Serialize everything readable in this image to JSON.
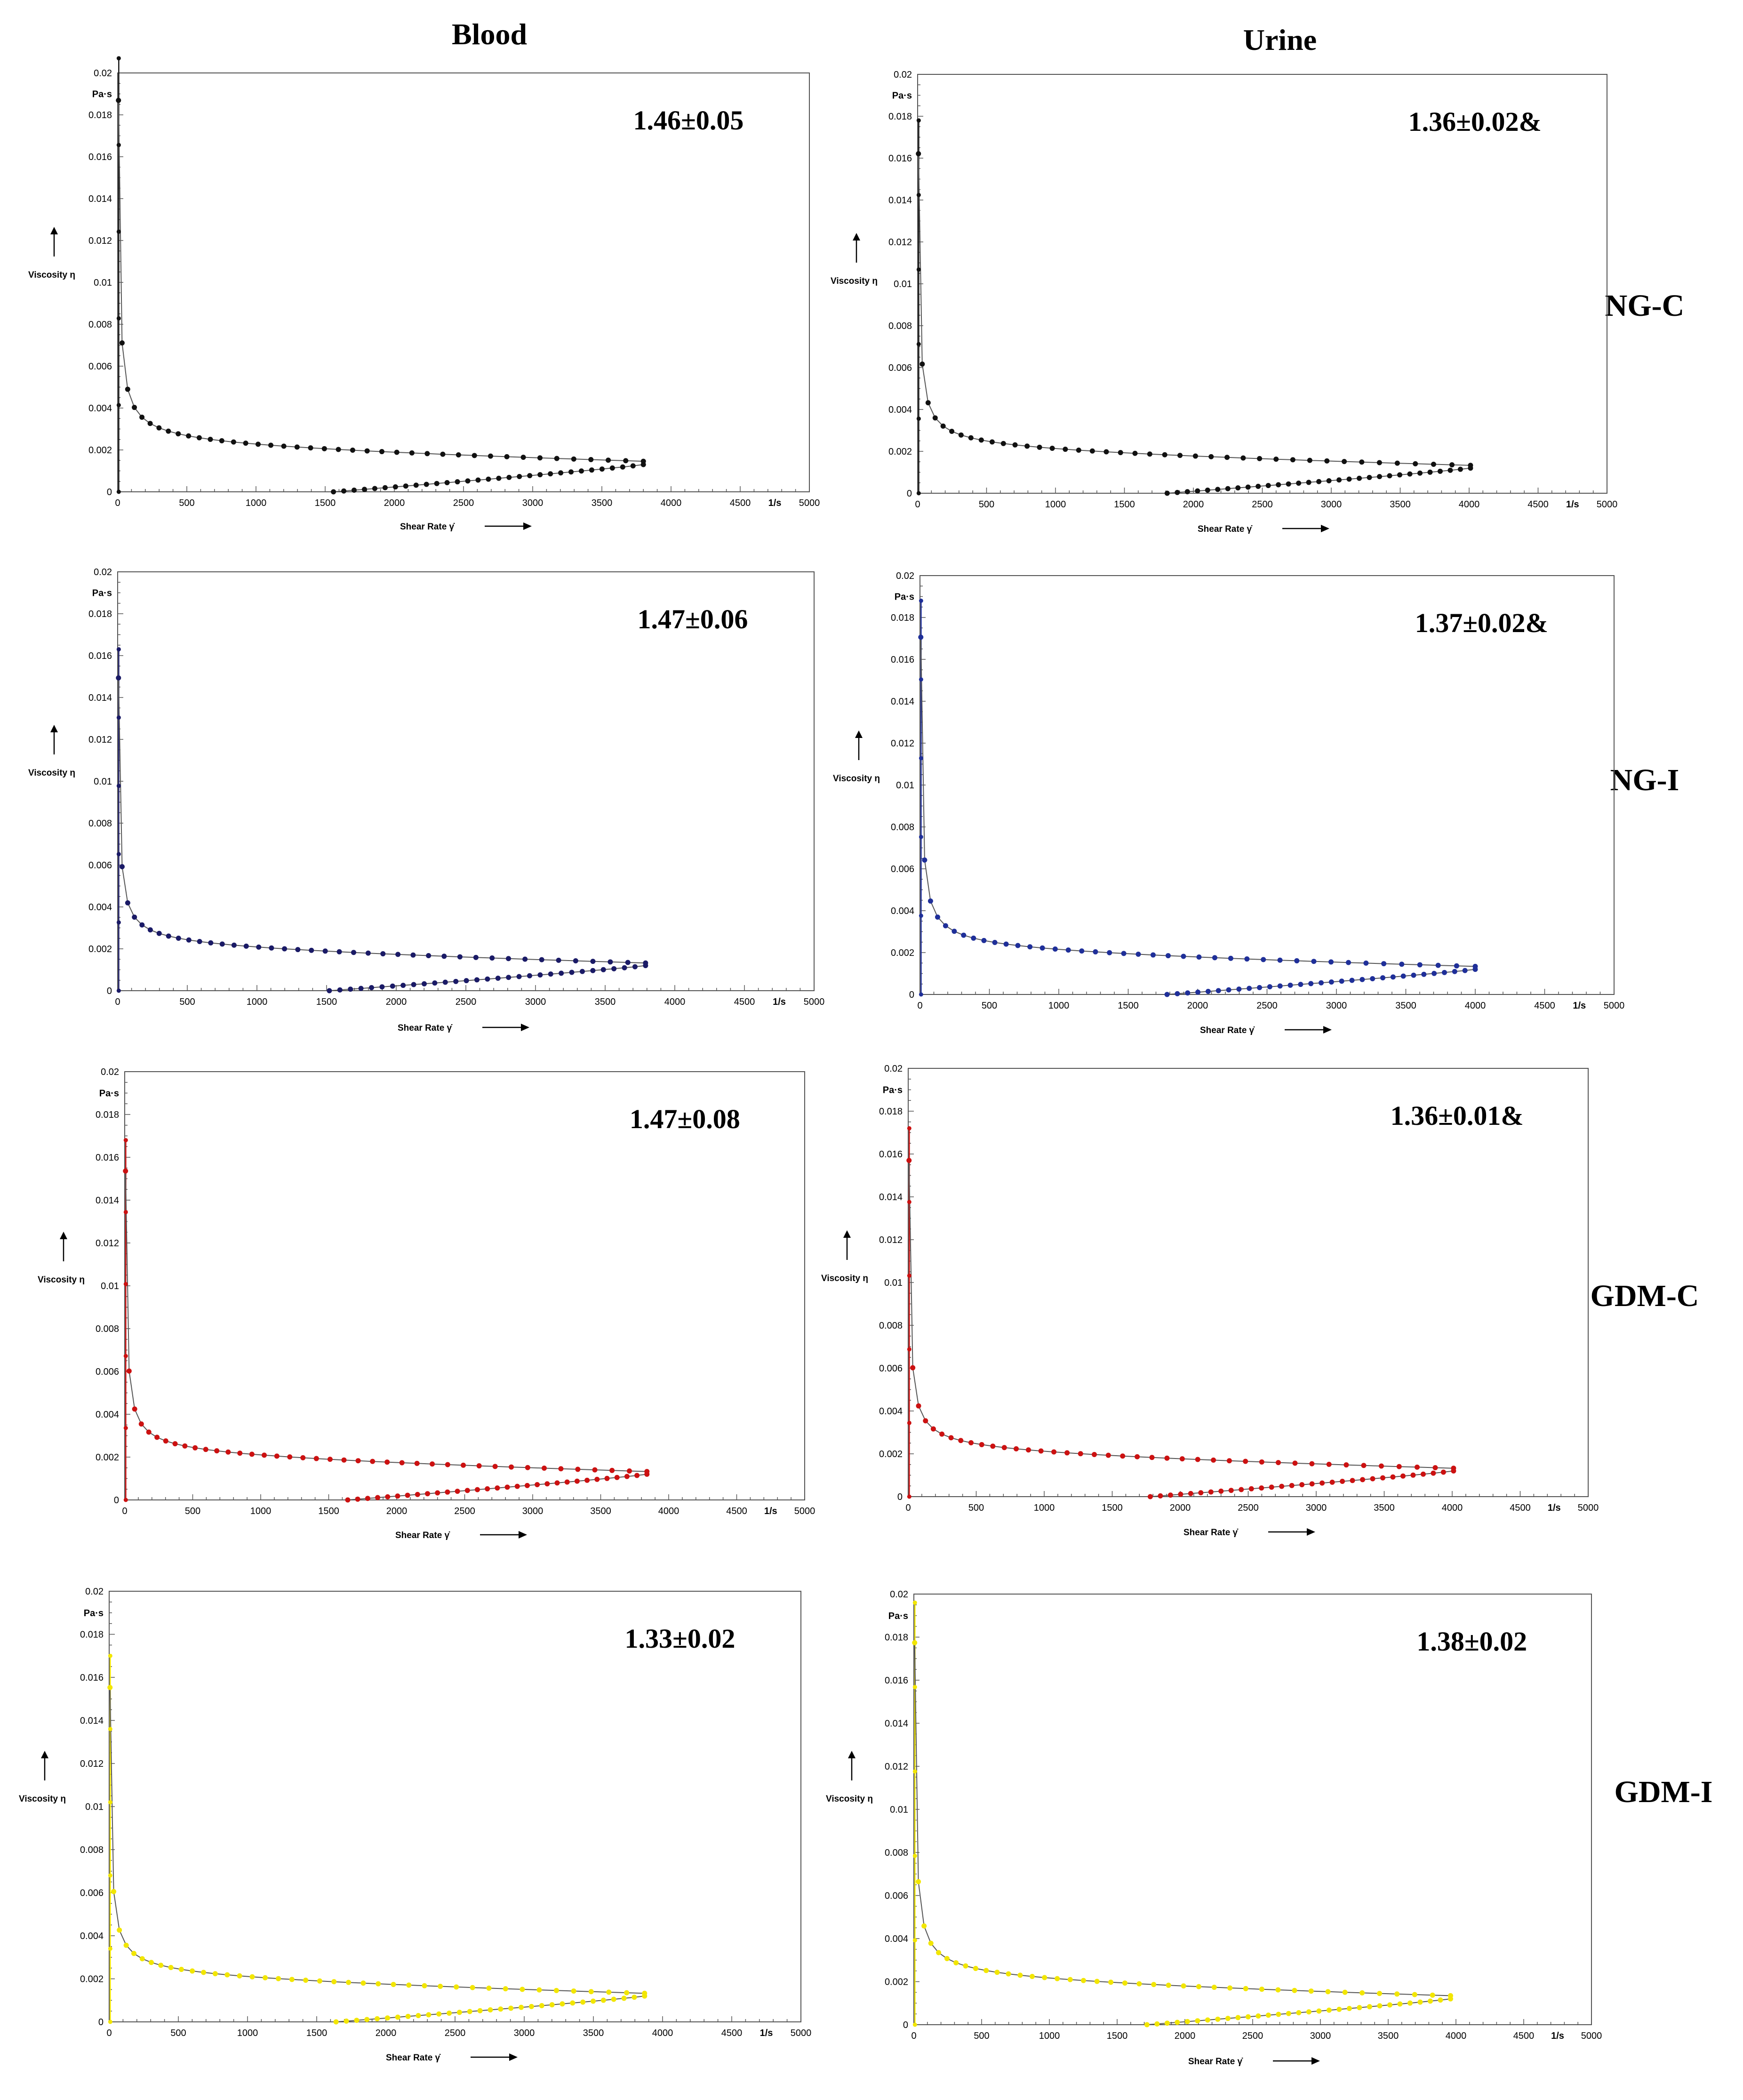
{
  "columns": {
    "blood": "Blood",
    "urine": "Urine"
  },
  "rows": [
    "NG-C",
    "NG-I",
    "GDM-C",
    "GDM-I"
  ],
  "chart_data": [
    {
      "type": "line",
      "title": "",
      "column": "Blood",
      "row": "NG-C",
      "stat": "1.46±0.05",
      "color": "#111111",
      "max_shear": 3800,
      "min_shear_end": 1560,
      "peak": 0.0207,
      "plateau": 0.0013,
      "xlabel": "Shear Rate γ̇",
      "ylabel": "Viscosity η",
      "yunit": "Pa·s",
      "xunit": "1/s",
      "xlim": [
        0,
        5000
      ],
      "ylim": [
        0,
        0.02
      ],
      "xticks": [
        "0",
        "500",
        "1000",
        "1500",
        "2000",
        "2500",
        "3000",
        "3500",
        "4000",
        "4500",
        "1/s",
        "5000"
      ],
      "yticks": [
        "0",
        "0.002",
        "0.004",
        "0.006",
        "0.008",
        "0.01",
        "0.012",
        "0.014",
        "0.016",
        "0.018",
        "Pa·s",
        "0.02"
      ]
    },
    {
      "type": "line",
      "title": "",
      "column": "Urine",
      "row": "NG-C",
      "stat": "1.36±0.02&",
      "color": "#111111",
      "max_shear": 4010,
      "min_shear_end": 1810,
      "peak": 0.0178,
      "plateau": 0.0012,
      "xlabel": "Shear Rate γ̇",
      "ylabel": "Viscosity η",
      "yunit": "Pa·s",
      "xunit": "1/s",
      "xlim": [
        0,
        5000
      ],
      "ylim": [
        0,
        0.02
      ],
      "xticks": [
        "0",
        "500",
        "1000",
        "1500",
        "2000",
        "2500",
        "3000",
        "3500",
        "4000",
        "4500",
        "1/s",
        "5000"
      ],
      "yticks": [
        "0",
        "0.002",
        "0.004",
        "0.006",
        "0.008",
        "0.01",
        "0.012",
        "0.014",
        "0.016",
        "0.018",
        "Pa·s",
        "0.02"
      ]
    },
    {
      "type": "line",
      "title": "",
      "column": "Blood",
      "row": "NG-I",
      "stat": "1.47±0.06",
      "color": "#1a1a66",
      "max_shear": 3790,
      "min_shear_end": 1520,
      "peak": 0.0163,
      "plateau": 0.0012,
      "xlabel": "Shear Rate γ̇",
      "ylabel": "Viscosity η",
      "yunit": "Pa·s",
      "xunit": "1/s",
      "xlim": [
        0,
        5000
      ],
      "ylim": [
        0,
        0.02
      ],
      "xticks": [
        "0",
        "500",
        "1000",
        "1500",
        "2000",
        "2500",
        "3000",
        "3500",
        "4000",
        "4500",
        "1/s",
        "5000"
      ],
      "yticks": [
        "0",
        "0.002",
        "0.004",
        "0.006",
        "0.008",
        "0.01",
        "0.012",
        "0.014",
        "0.016",
        "0.018",
        "Pa·s",
        "0.02"
      ]
    },
    {
      "type": "line",
      "title": "",
      "column": "Urine",
      "row": "NG-I",
      "stat": "1.37±0.02&",
      "color": "#1f2f99",
      "max_shear": 4000,
      "min_shear_end": 1780,
      "peak": 0.0188,
      "plateau": 0.0012,
      "xlabel": "Shear Rate γ̇",
      "ylabel": "Viscosity η",
      "yunit": "Pa·s",
      "xunit": "1/s",
      "xlim": [
        0,
        5000
      ],
      "ylim": [
        0,
        0.02
      ],
      "xticks": [
        "0",
        "500",
        "1000",
        "1500",
        "2000",
        "2500",
        "3000",
        "3500",
        "4000",
        "4500",
        "1/s",
        "5000"
      ],
      "yticks": [
        "0",
        "0.002",
        "0.004",
        "0.006",
        "0.008",
        "0.01",
        "0.012",
        "0.014",
        "0.016",
        "0.018",
        "Pa·s",
        "0.02"
      ]
    },
    {
      "type": "line",
      "title": "",
      "column": "Blood",
      "row": "GDM-C",
      "stat": "1.47±0.08",
      "color": "#cc1111",
      "max_shear": 3840,
      "min_shear_end": 1640,
      "peak": 0.0168,
      "plateau": 0.0012,
      "xlabel": "Shear Rate γ̇",
      "ylabel": "Viscosity η",
      "yunit": "Pa·s",
      "xunit": "1/s",
      "xlim": [
        0,
        5000
      ],
      "ylim": [
        0,
        0.02
      ],
      "xticks": [
        "0",
        "500",
        "1000",
        "1500",
        "2000",
        "2500",
        "3000",
        "3500",
        "4000",
        "4500",
        "1/s",
        "5000"
      ],
      "yticks": [
        "0",
        "0.002",
        "0.004",
        "0.006",
        "0.008",
        "0.01",
        "0.012",
        "0.014",
        "0.016",
        "0.018",
        "Pa·s",
        "0.02"
      ]
    },
    {
      "type": "line",
      "title": "",
      "column": "Urine",
      "row": "GDM-C",
      "stat": "1.36±0.01&",
      "color": "#cc1111",
      "max_shear": 4010,
      "min_shear_end": 1780,
      "peak": 0.0172,
      "plateau": 0.0012,
      "xlabel": "Shear Rate γ̇",
      "ylabel": "Viscosity η",
      "yunit": "Pa·s",
      "xunit": "1/s",
      "xlim": [
        0,
        5000
      ],
      "ylim": [
        0,
        0.02
      ],
      "xticks": [
        "0",
        "500",
        "1000",
        "1500",
        "2000",
        "2500",
        "3000",
        "3500",
        "4000",
        "4500",
        "1/s",
        "5000"
      ],
      "yticks": [
        "0",
        "0.002",
        "0.004",
        "0.006",
        "0.008",
        "0.01",
        "0.012",
        "0.014",
        "0.016",
        "0.018",
        "Pa·s",
        "0.02"
      ]
    },
    {
      "type": "line",
      "title": "",
      "column": "Blood",
      "row": "GDM-I",
      "stat": "1.33±0.02",
      "color": "#f2e600",
      "max_shear": 3870,
      "min_shear_end": 1640,
      "peak": 0.017,
      "plateau": 0.0012,
      "xlabel": "Shear Rate γ̇",
      "ylabel": "Viscosity η",
      "yunit": "Pa·s",
      "xunit": "1/s",
      "xlim": [
        0,
        5000
      ],
      "ylim": [
        0,
        0.02
      ],
      "xticks": [
        "0",
        "500",
        "1000",
        "1500",
        "2000",
        "2500",
        "3000",
        "3500",
        "4000",
        "4500",
        "1/s",
        "5000"
      ],
      "yticks": [
        "0",
        "0.002",
        "0.004",
        "0.006",
        "0.008",
        "0.01",
        "0.012",
        "0.014",
        "0.016",
        "0.018",
        "Pa·s",
        "0.02"
      ]
    },
    {
      "type": "line",
      "title": "",
      "column": "Urine",
      "row": "GDM-I",
      "stat": "1.38±0.02",
      "color": "#f2e600",
      "max_shear": 3960,
      "min_shear_end": 1720,
      "peak": 0.0196,
      "plateau": 0.0012,
      "xlabel": "Shear Rate γ̇",
      "ylabel": "Viscosity η",
      "yunit": "Pa·s",
      "xunit": "1/s",
      "xlim": [
        0,
        5000
      ],
      "ylim": [
        0,
        0.02
      ],
      "xticks": [
        "0",
        "500",
        "1000",
        "1500",
        "2000",
        "2500",
        "3000",
        "3500",
        "4000",
        "4500",
        "1/s",
        "5000"
      ],
      "yticks": [
        "0",
        "0.002",
        "0.004",
        "0.006",
        "0.008",
        "0.01",
        "0.012",
        "0.014",
        "0.016",
        "0.018",
        "Pa·s",
        "0.02"
      ]
    }
  ]
}
